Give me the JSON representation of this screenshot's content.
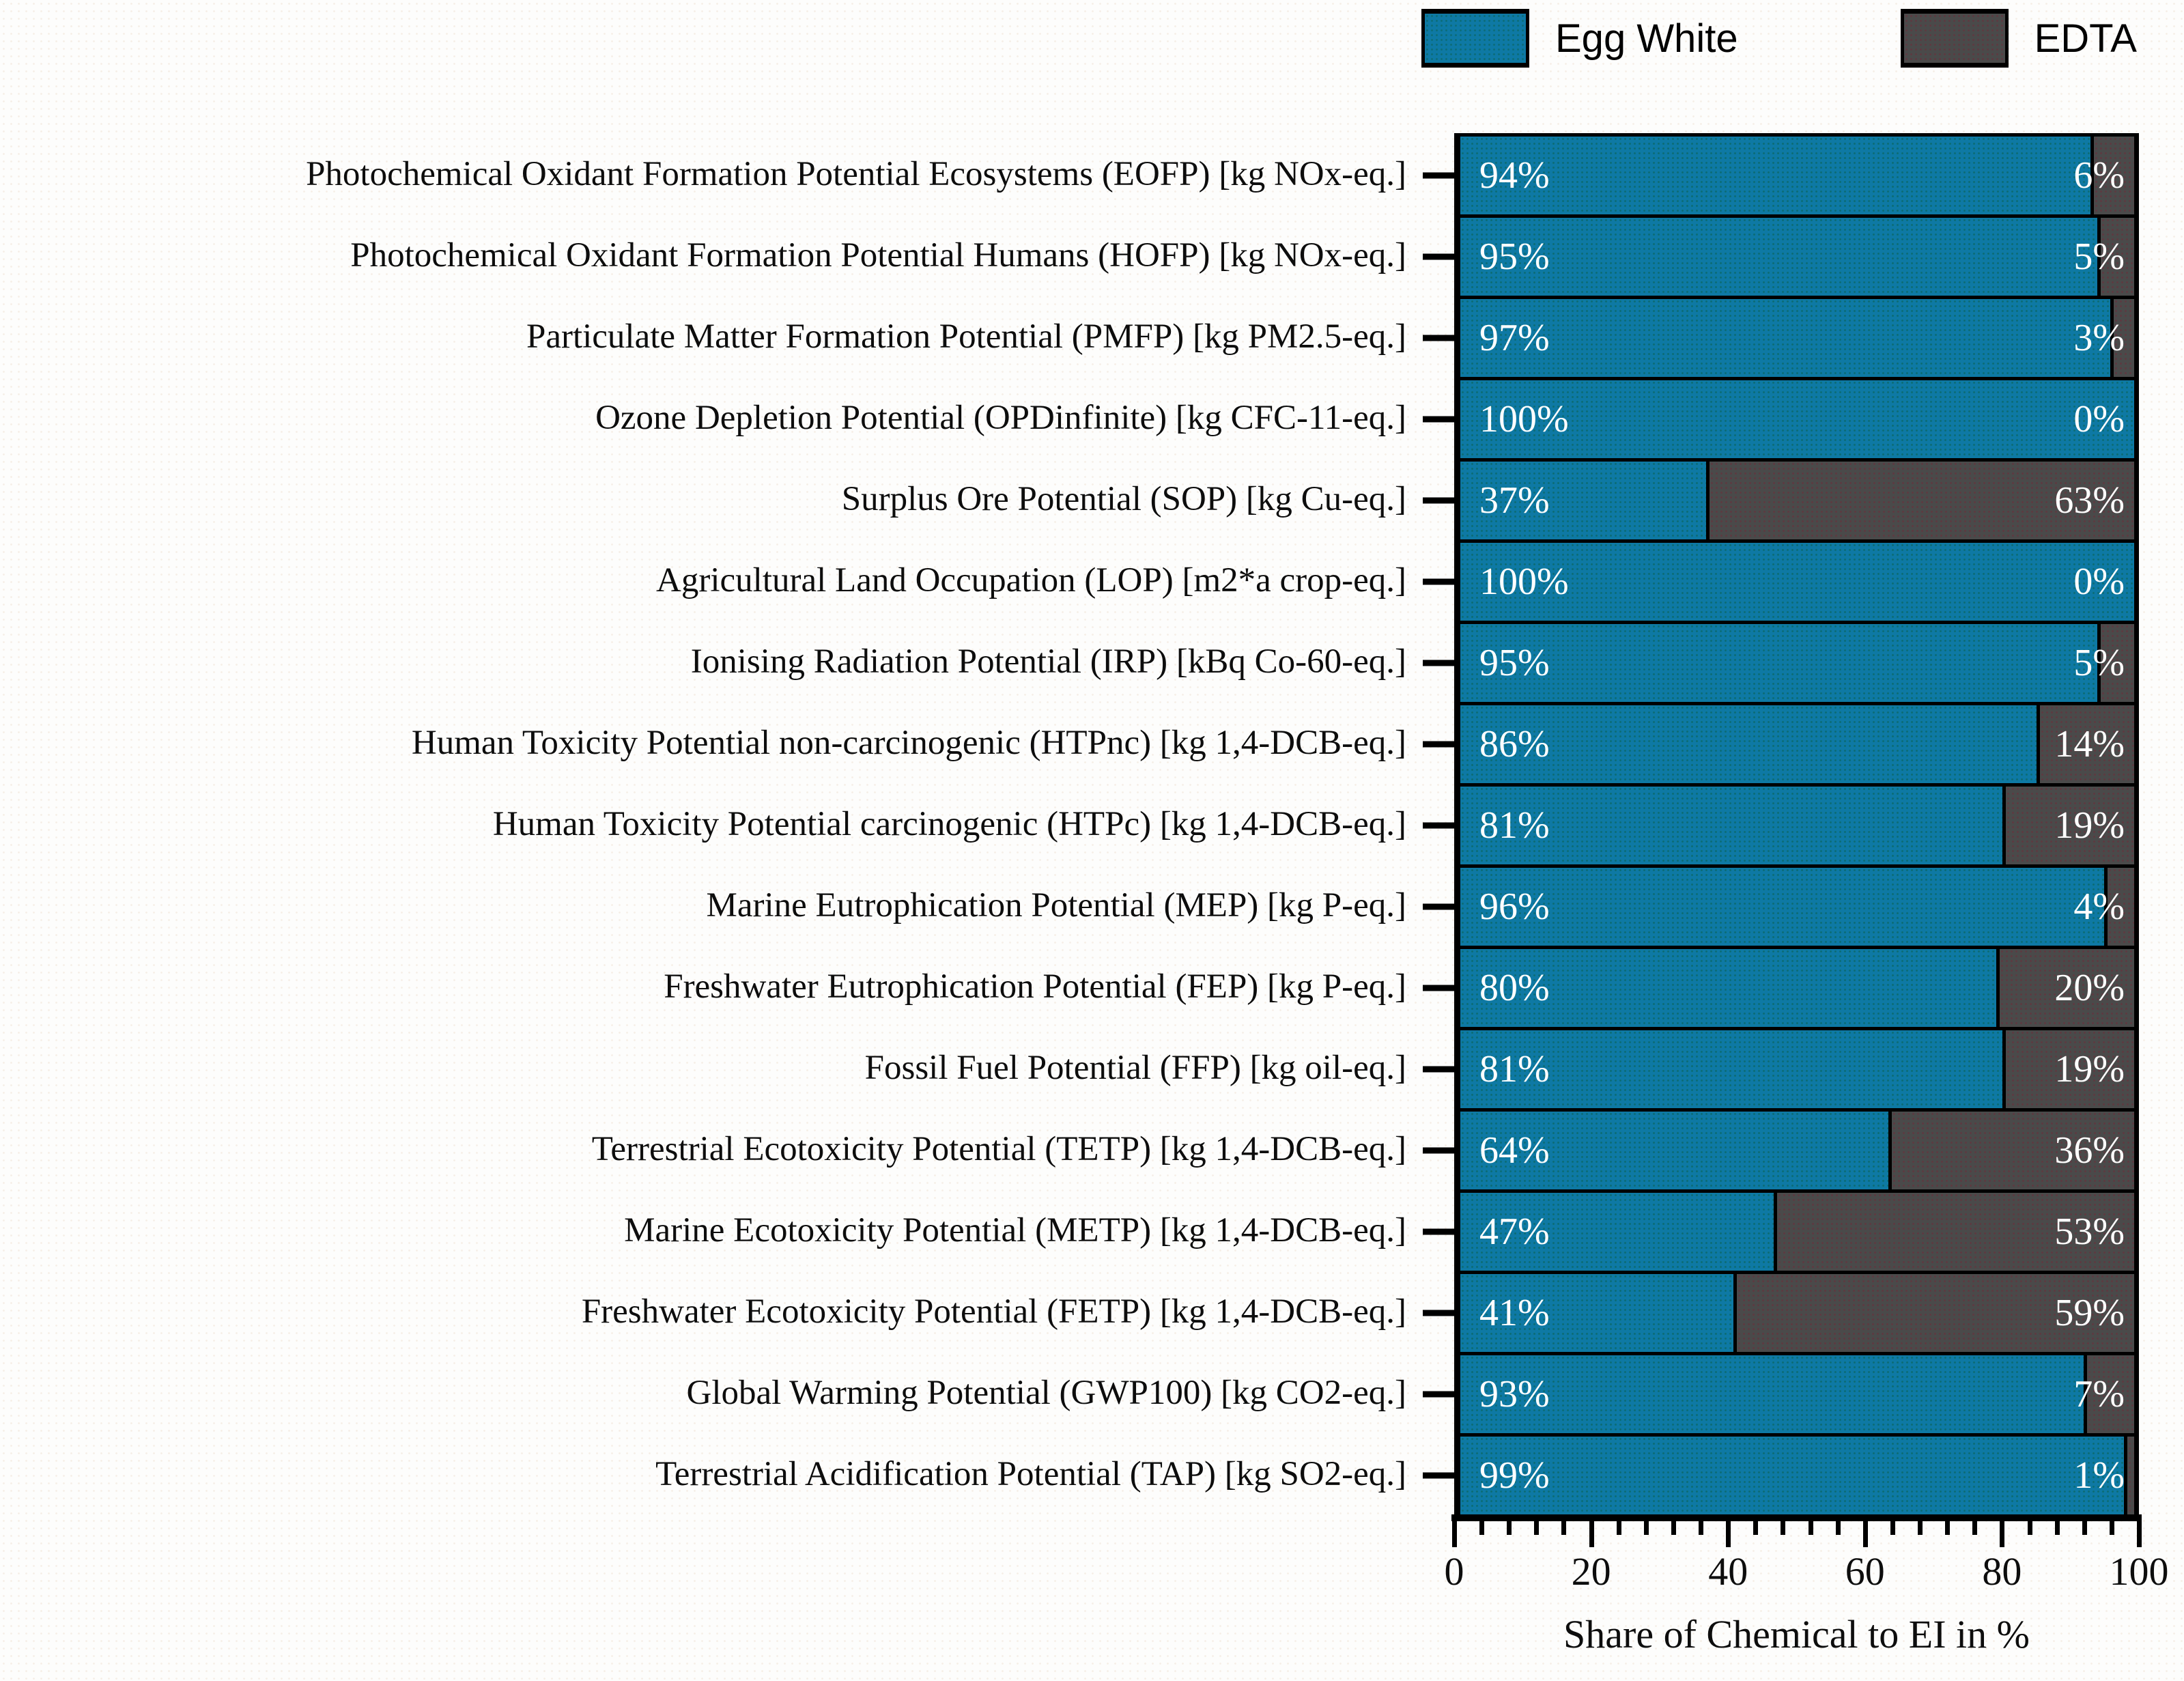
{
  "legend": {
    "items": [
      {
        "label": "Egg White",
        "color": "#0e79a4"
      },
      {
        "label": "EDTA",
        "color": "#4a4a4a"
      }
    ]
  },
  "axis": {
    "xlabel": "Share of Chemical to EI in %",
    "min": 0,
    "max": 100,
    "major_ticks": [
      0,
      20,
      40,
      60,
      80,
      100
    ],
    "minor_tick_step": 4
  },
  "chart_data": {
    "type": "bar",
    "orientation": "horizontal",
    "stacked": true,
    "unit": "%",
    "xlim": [
      0,
      100
    ],
    "grid": false,
    "legend_position": "top",
    "xlabel": "Share of Chemical to EI in %",
    "categories": [
      "Photochemical Oxidant Formation Potential Ecosystems (EOFP) [kg NOx-eq.]",
      "Photochemical Oxidant Formation Potential Humans (HOFP) [kg NOx-eq.]",
      "Particulate Matter Formation Potential (PMFP) [kg PM2.5-eq.]",
      "Ozone Depletion Potential (OPDinfinite) [kg CFC-11-eq.]",
      "Surplus Ore Potential (SOP) [kg Cu-eq.]",
      "Agricultural Land Occupation (LOP) [m2*a crop-eq.]",
      "Ionising Radiation Potential (IRP) [kBq Co-60-eq.]",
      "Human Toxicity Potential non-carcinogenic (HTPnc) [kg 1,4-DCB-eq.]",
      "Human Toxicity Potential carcinogenic (HTPc) [kg 1,4-DCB-eq.]",
      "Marine Eutrophication Potential (MEP) [kg P-eq.]",
      "Freshwater Eutrophication Potential (FEP) [kg P-eq.]",
      "Fossil Fuel Potential (FFP) [kg oil-eq.]",
      "Terrestrial Ecotoxicity Potential (TETP) [kg 1,4-DCB-eq.]",
      "Marine Ecotoxicity Potential (METP) [kg 1,4-DCB-eq.]",
      "Freshwater Ecotoxicity Potential (FETP) [kg 1,4-DCB-eq.]",
      "Global Warming Potential (GWP100) [kg CO2-eq.]",
      "Terrestrial Acidification Potential (TAP) [kg SO2-eq.]"
    ],
    "series": [
      {
        "name": "Egg White",
        "color": "#0e79a4",
        "values": [
          94,
          95,
          97,
          100,
          37,
          100,
          95,
          86,
          81,
          96,
          80,
          81,
          64,
          47,
          41,
          93,
          99
        ]
      },
      {
        "name": "EDTA",
        "color": "#4a4a4a",
        "values": [
          6,
          5,
          3,
          0,
          63,
          0,
          5,
          14,
          19,
          4,
          20,
          19,
          36,
          53,
          59,
          7,
          1
        ]
      }
    ],
    "value_labels": {
      "egg": [
        "94%",
        "95%",
        "97%",
        "100%",
        "37%",
        "100%",
        "95%",
        "86%",
        "81%",
        "96%",
        "80%",
        "81%",
        "64%",
        "47%",
        "41%",
        "93%",
        "99%"
      ],
      "edta": [
        "6%",
        "5%",
        "3%",
        "0%",
        "63%",
        "0%",
        "5%",
        "14%",
        "19%",
        "4%",
        "20%",
        "19%",
        "36%",
        "53%",
        "59%",
        "7%",
        "1%"
      ]
    }
  }
}
